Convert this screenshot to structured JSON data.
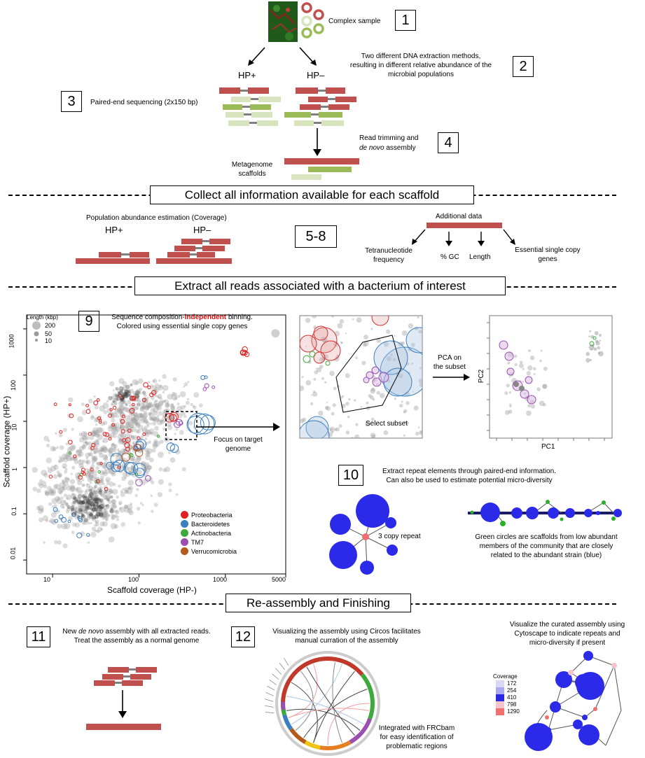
{
  "step1": {
    "label": "Complex sample",
    "num": "1"
  },
  "step2": {
    "line1": "Two different DNA extraction methods,",
    "line2": "resulting in different relative abundance of the",
    "line3": "microbial populations",
    "num": "2"
  },
  "hp_plus": "HP+",
  "hp_minus": "HP–",
  "step3": {
    "label": "Paired-end sequencing (2x150 bp)",
    "num": "3"
  },
  "step4": {
    "line1": "Read trimming and",
    "line2_italic": "de novo",
    "line2_rest": " assembly",
    "num": "4"
  },
  "scaffolds": {
    "line1": "Metagenome",
    "line2": "scaffolds"
  },
  "banner1": "Collect all information available for each scaffold",
  "coverage": {
    "title": "Population abundance estimation (Coverage)",
    "hp_plus": "HP+",
    "hp_minus": "HP–"
  },
  "step58": "5-8",
  "additional": {
    "title": "Additional data",
    "tetra1": "Tetranucleotide",
    "tetra2": "frequency",
    "gc": "% GC",
    "length": "Length",
    "essential1": "Essential single copy",
    "essential2": "genes"
  },
  "banner2": "Extract all reads associated with a bacterium of interest",
  "step9": {
    "num": "9",
    "line1_a": "Sequence composition-",
    "line1_b": "independent",
    "line1_c": " binning.",
    "line2": "Colored using essential single copy genes"
  },
  "scatter": {
    "size_legend_title": "Length (kbp)",
    "size_legend": [
      "200",
      "50",
      "10"
    ],
    "ylabel": "Scaffold coverage (HP+)",
    "xlabel": "Scaffold coverage (HP-)",
    "yticks": [
      "1000",
      "100",
      "10",
      "1",
      "0.1",
      "0.01"
    ],
    "xticks": [
      "10",
      "100",
      "1000",
      "5000"
    ],
    "focus1": "Focus on target",
    "focus2": "genome"
  },
  "chart_data": {
    "type": "scatter",
    "xlabel": "Scaffold coverage (HP-)",
    "ylabel": "Scaffold coverage (HP+)",
    "xscale": "log",
    "yscale": "log",
    "xlim": [
      5,
      5000
    ],
    "ylim": [
      0.005,
      2000
    ],
    "legend": [
      {
        "name": "Proteobacteria",
        "color": "#e02020"
      },
      {
        "name": "Bacteroidetes",
        "color": "#3a7fc0"
      },
      {
        "name": "Actinobacteria",
        "color": "#3daa3d"
      },
      {
        "name": "TM7",
        "color": "#9b4fb3"
      },
      {
        "name": "Verrucomicrobia",
        "color": "#b35a1f"
      }
    ],
    "size_legend_kbp": [
      200,
      50,
      10
    ]
  },
  "select_subset": "Select subset",
  "pca": {
    "line1": "PCA on",
    "line2": "the subset",
    "pc1": "PC1",
    "pc2": "PC2"
  },
  "step10": {
    "num": "10",
    "line1": "Extract repeat elements through paired-end information.",
    "line2": "Can also be used to estimate potential micro-diversity"
  },
  "repeat_label": "3 copy repeat",
  "green_circles": {
    "line1": "Green circles are scaffolds from low abundant",
    "line2": "members of the community that are closely",
    "line3": "related to the abundant strain (blue)"
  },
  "banner3": "Re-assembly and Finishing",
  "step11": {
    "num": "11",
    "line1_a": "New ",
    "line1_b": "de novo",
    "line1_c": " assembly with all extracted reads.",
    "line2": "Treat the assembly as a normal genome"
  },
  "step12": {
    "num": "12",
    "line1": "Visualizing the assembly using Circos facilitates",
    "line2": "manual curration of the assembly"
  },
  "frcbam": {
    "line1": "Integrated with FRCbam",
    "line2": "for easy identification of",
    "line3": "problematic regions"
  },
  "cytoscape": {
    "line1": "Visualize the curated assembly using",
    "line2": "Cytoscape to indicate repeats and",
    "line3": "micro-diversity if present"
  },
  "coverage_legend": {
    "title": "Coverage",
    "items": [
      {
        "label": "172",
        "color": "#d8d8f4"
      },
      {
        "label": "254",
        "color": "#aaaaee"
      },
      {
        "label": "410",
        "color": "#2a2ae0"
      },
      {
        "label": "798",
        "color": "#f4c4cc"
      },
      {
        "label": "1290",
        "color": "#f07070"
      }
    ]
  }
}
